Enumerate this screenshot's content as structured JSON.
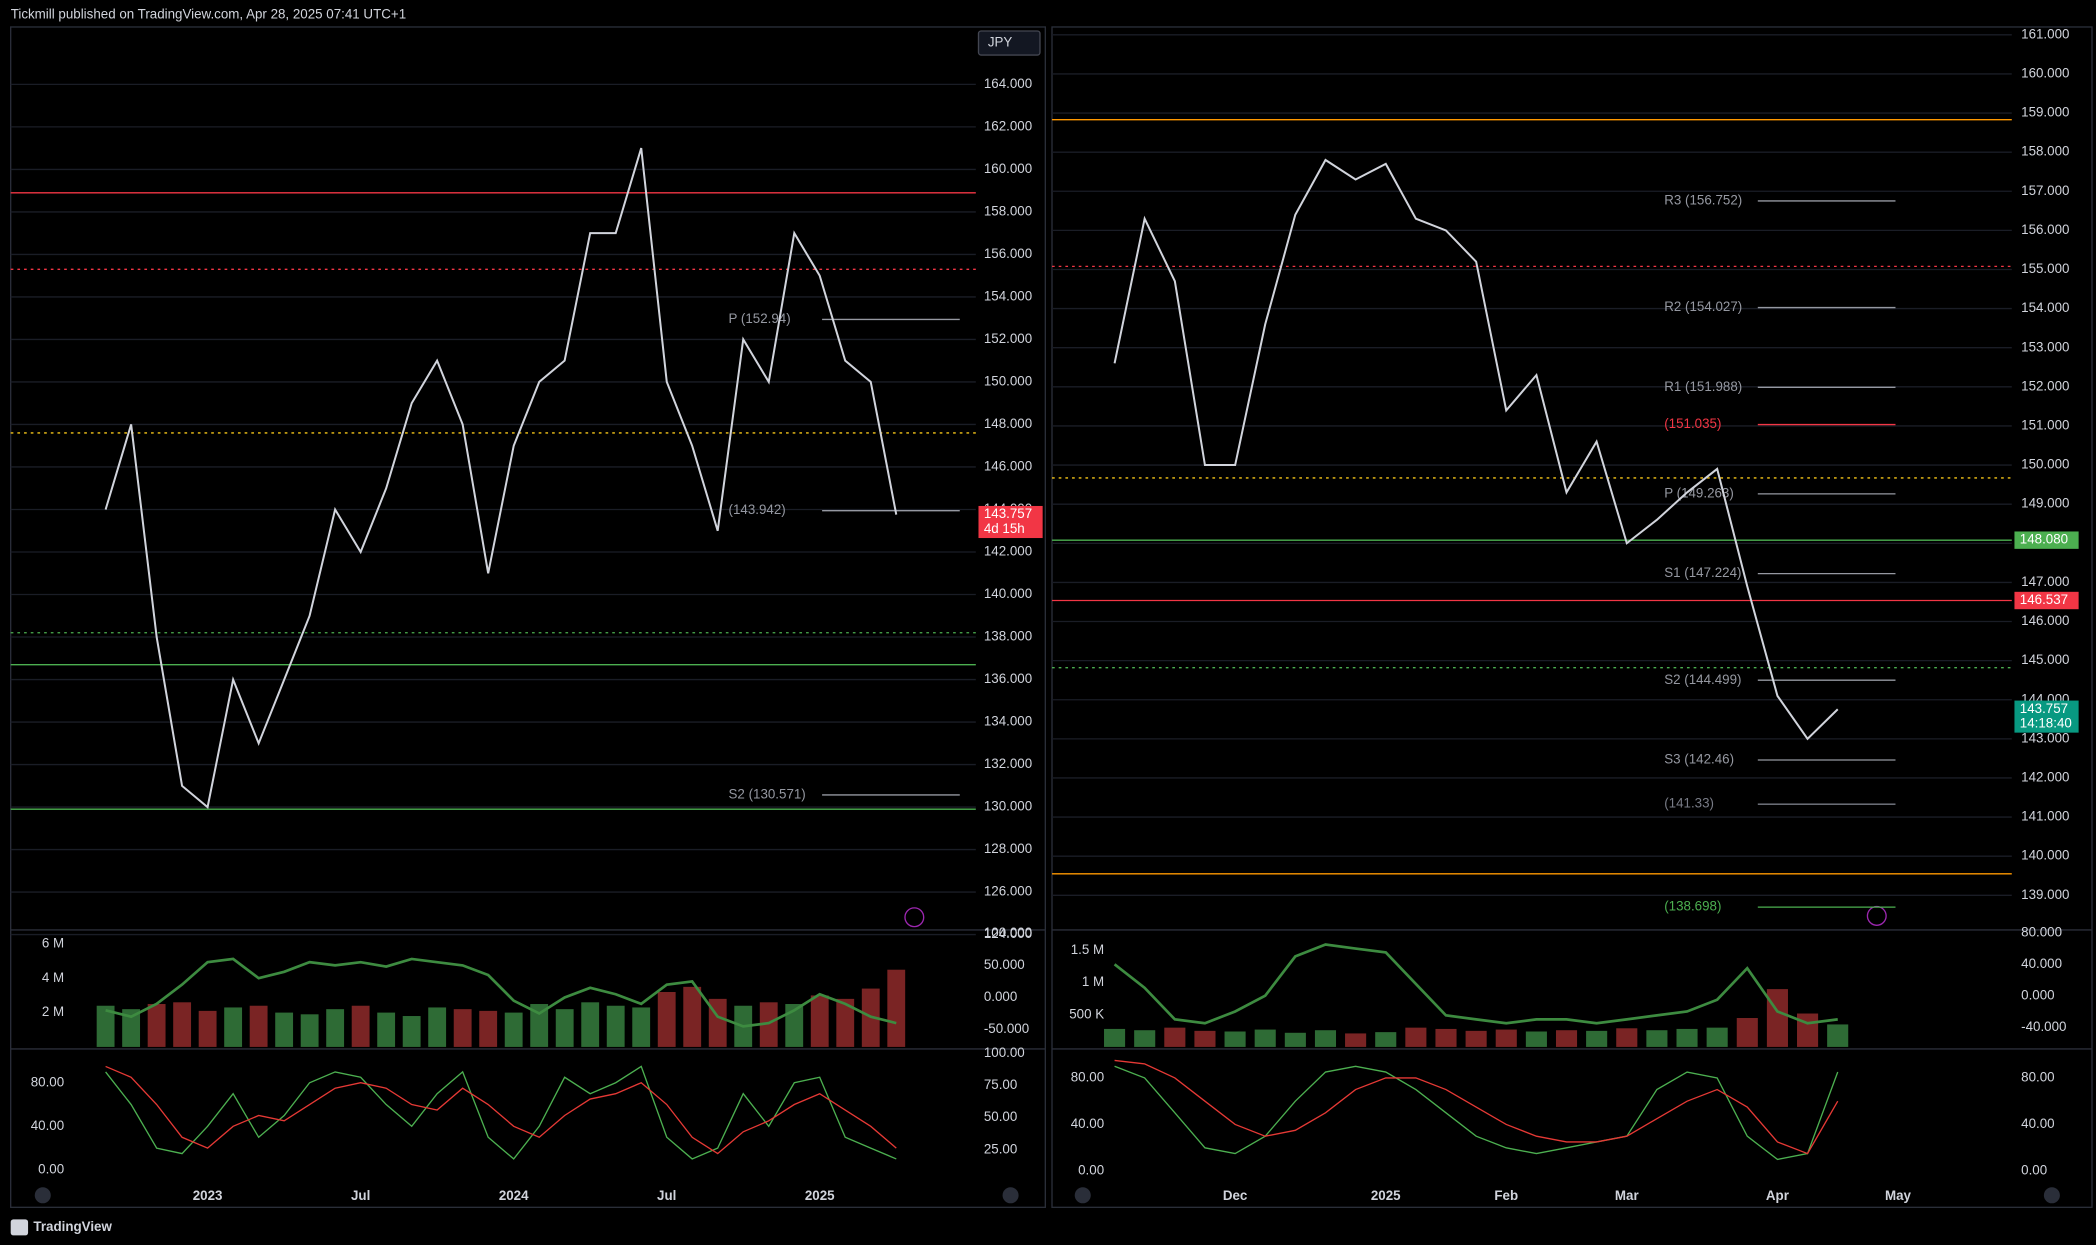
{
  "page": {
    "header": "Tickmill published on TradingView.com, Apr 28, 2025 07:41 UTC+1",
    "brand": "TradingView"
  },
  "chart_data": [
    {
      "type": "line",
      "currency": "JPY",
      "color": "#d1d4dc",
      "categories": [
        null,
        null,
        null,
        null,
        "2023",
        null,
        null,
        null,
        null,
        null,
        "Jul",
        null,
        null,
        null,
        null,
        null,
        "2024",
        null,
        null,
        null,
        null,
        null,
        "Jul",
        null,
        null,
        null,
        null,
        null,
        "2025",
        null,
        null,
        null
      ],
      "values": [
        144,
        148,
        138,
        131,
        130,
        136,
        133,
        136,
        139,
        144,
        142,
        145,
        149,
        151,
        148,
        141,
        147,
        150,
        151,
        157,
        157,
        161,
        150,
        147,
        143,
        152,
        150,
        157,
        155,
        151,
        150,
        143.757
      ],
      "ylim": [
        124.25,
        166.7
      ],
      "yticks": [
        {
          "value": 124,
          "label": "124.000"
        },
        {
          "value": 126,
          "label": "126.000"
        },
        {
          "value": 128,
          "label": "128.000"
        },
        {
          "value": 130,
          "label": "130.000"
        },
        {
          "value": 132,
          "label": "132.000"
        },
        {
          "value": 134,
          "label": "134.000"
        },
        {
          "value": 136,
          "label": "136.000"
        },
        {
          "value": 138,
          "label": "138.000"
        },
        {
          "value": 140,
          "label": "140.000"
        },
        {
          "value": 142,
          "label": "142.000"
        },
        {
          "value": 144,
          "label": "144.000"
        },
        {
          "value": 146,
          "label": "146.000"
        },
        {
          "value": 148,
          "label": "148.000"
        },
        {
          "value": 150,
          "label": "150.000"
        },
        {
          "value": 152,
          "label": "152.000"
        },
        {
          "value": 154,
          "label": "154.000"
        },
        {
          "value": 156,
          "label": "156.000"
        },
        {
          "value": 158,
          "label": "158.000"
        },
        {
          "value": 160,
          "label": "160.000"
        },
        {
          "value": 162,
          "label": "162.000"
        },
        {
          "value": 164,
          "label": "164.000"
        }
      ],
      "levels": [
        {
          "value": 158.9,
          "color": "#f23645"
        },
        {
          "value": 155.3,
          "color": "#f23645",
          "style": "dotted"
        },
        {
          "label": "P (152.94)",
          "value": 152.94,
          "color": "#9598a1"
        },
        {
          "value": 147.6,
          "color": "#f5c518",
          "style": "dotted"
        },
        {
          "label": "(143.942)",
          "value": 143.942,
          "color": "#9598a1"
        },
        {
          "value": 138.2,
          "color": "#4caf50",
          "style": "dotted"
        },
        {
          "value": 136.7,
          "color": "#4caf50"
        },
        {
          "label": "S2 (130.571)",
          "value": 130.571,
          "color": "#9598a1"
        },
        {
          "value": 129.9,
          "color": "#4caf50"
        }
      ],
      "tags": [
        {
          "value": 143.757,
          "label": "143.757",
          "note": "4d 15h",
          "color": "#f23645"
        }
      ],
      "volume": {
        "up_color": "#2e6b35",
        "down_color": "#7a2424",
        "values": [
          2400000,
          2200000,
          2500000,
          2600000,
          2100000,
          2300000,
          2400000,
          2000000,
          1900000,
          2200000,
          2400000,
          2000000,
          1800000,
          2300000,
          2200000,
          2100000,
          2000000,
          2500000,
          2200000,
          2600000,
          2400000,
          2300000,
          3200000,
          3500000,
          2800000,
          2400000,
          2600000,
          2500000,
          3000000,
          2800000,
          3400000,
          4500000
        ],
        "ylim": [
          0,
          6700000
        ],
        "yticks": [
          {
            "value": 2000000,
            "label": "2 M"
          },
          {
            "value": 4000000,
            "label": "4 M"
          },
          {
            "value": 6000000,
            "label": "6 M"
          }
        ]
      },
      "momentum": {
        "color": "#3d8b40",
        "values": [
          -20,
          -30,
          -10,
          20,
          55,
          60,
          30,
          40,
          55,
          50,
          55,
          48,
          60,
          55,
          50,
          35,
          -5,
          -25,
          0,
          15,
          5,
          -10,
          20,
          25,
          -30,
          -45,
          -40,
          -20,
          5,
          -10,
          -30,
          -40
        ],
        "ylim": [
          -77,
          102
        ],
        "yticks": [
          {
            "value": 100,
            "label": "100.000"
          },
          {
            "value": 50,
            "label": "50.000"
          },
          {
            "value": 0,
            "label": "0.000"
          },
          {
            "value": -50,
            "label": "-50.000"
          }
        ]
      },
      "oscillator": {
        "series": [
          {
            "color": "#4caf50",
            "values": [
              90,
              60,
              20,
              15,
              40,
              70,
              30,
              50,
              80,
              90,
              85,
              60,
              40,
              70,
              90,
              30,
              10,
              40,
              85,
              70,
              80,
              95,
              30,
              10,
              20,
              70,
              40,
              80,
              85,
              30,
              20,
              10
            ]
          },
          {
            "color": "#e53935",
            "values": [
              95,
              85,
              60,
              30,
              20,
              40,
              50,
              45,
              60,
              75,
              80,
              75,
              60,
              55,
              75,
              60,
              40,
              30,
              50,
              65,
              70,
              80,
              60,
              30,
              15,
              35,
              45,
              60,
              70,
              55,
              40,
              20
            ]
          }
        ],
        "ylim": [
          -8.6,
          108
        ],
        "yticks": [
          {
            "value": 80,
            "label": "80.00"
          },
          {
            "value": 40,
            "label": "40.00"
          },
          {
            "value": 0,
            "label": "0.00"
          }
        ],
        "y2lim": [
          2,
          101
        ],
        "y2ticks": [
          {
            "value": 100,
            "label": "100.00"
          },
          {
            "value": 75,
            "label": "75.00"
          },
          {
            "value": 50,
            "label": "50.00"
          },
          {
            "value": 25,
            "label": "25.00"
          }
        ]
      }
    },
    {
      "type": "line",
      "color": "#d1d4dc",
      "categories": [
        null,
        null,
        null,
        null,
        "Dec",
        null,
        null,
        null,
        null,
        "2025",
        null,
        null,
        null,
        "Feb",
        null,
        null,
        null,
        "Mar",
        null,
        null,
        null,
        null,
        "Apr",
        null,
        null,
        null,
        "May"
      ],
      "values": [
        152.6,
        156.3,
        154.7,
        150.0,
        150.0,
        153.6,
        156.4,
        157.8,
        157.3,
        157.7,
        156.3,
        156.0,
        155.2,
        151.4,
        152.3,
        149.3,
        150.6,
        148.0,
        148.6,
        149.3,
        149.9,
        146.9,
        144.1,
        143.0,
        143.757,
        null,
        null
      ],
      "ylim": [
        138.2,
        161.2
      ],
      "yticks": [
        {
          "value": 139,
          "label": "139.000"
        },
        {
          "value": 140,
          "label": "140.000"
        },
        {
          "value": 141,
          "label": "141.000"
        },
        {
          "value": 142,
          "label": "142.000"
        },
        {
          "value": 143,
          "label": "143.000"
        },
        {
          "value": 144,
          "label": "144.000"
        },
        {
          "value": 145,
          "label": "145.000"
        },
        {
          "value": 146,
          "label": "146.000"
        },
        {
          "value": 147,
          "label": "147.000"
        },
        {
          "value": 148,
          "label": "148.000"
        },
        {
          "value": 149,
          "label": "149.000"
        },
        {
          "value": 150,
          "label": "150.000"
        },
        {
          "value": 151,
          "label": "151.000"
        },
        {
          "value": 152,
          "label": "152.000"
        },
        {
          "value": 153,
          "label": "153.000"
        },
        {
          "value": 154,
          "label": "154.000"
        },
        {
          "value": 155,
          "label": "155.000"
        },
        {
          "value": 156,
          "label": "156.000"
        },
        {
          "value": 157,
          "label": "157.000"
        },
        {
          "value": 158,
          "label": "158.000"
        },
        {
          "value": 159,
          "label": "159.000"
        },
        {
          "value": 160,
          "label": "160.000"
        },
        {
          "value": 161,
          "label": "161.000"
        }
      ],
      "levels": [
        {
          "value": 158.83,
          "color": "#ff9800"
        },
        {
          "value": 155.08,
          "color": "#f23645",
          "style": "dotted"
        },
        {
          "label": "R3 (156.752)",
          "value": 156.752,
          "color": "#9598a1"
        },
        {
          "label": "R2 (154.027)",
          "value": 154.027,
          "color": "#9598a1"
        },
        {
          "label": "R1 (151.988)",
          "value": 151.988,
          "color": "#9598a1"
        },
        {
          "label": "(151.035)",
          "value": 151.035,
          "color": "#f23645"
        },
        {
          "value": 149.67,
          "color": "#f5c518",
          "style": "dotted"
        },
        {
          "label": "P (149.263)",
          "value": 149.263,
          "color": "#9598a1"
        },
        {
          "label": "S1 (147.224)",
          "value": 147.224,
          "color": "#9598a1"
        },
        {
          "value": 148.08,
          "color": "#4caf50"
        },
        {
          "value": 146.537,
          "color": "#f23645"
        },
        {
          "value": 144.82,
          "color": "#4caf50",
          "style": "dotted"
        },
        {
          "label": "S2 (144.499)",
          "value": 144.499,
          "color": "#9598a1"
        },
        {
          "label": "S3 (142.46)",
          "value": 142.46,
          "color": "#9598a1"
        },
        {
          "label": "(141.33)",
          "value": 141.33,
          "color": "#787b86"
        },
        {
          "label": "(138.698)",
          "value": 138.698,
          "color": "#4caf50"
        },
        {
          "value": 139.55,
          "color": "#ff9800"
        }
      ],
      "tags": [
        {
          "value": 148.08,
          "label": "148.080",
          "color": "#4caf50"
        },
        {
          "value": 146.537,
          "label": "146.537",
          "color": "#f23645"
        },
        {
          "value": 143.757,
          "label": "143.757",
          "note": "14:18:40",
          "color": "#089981"
        }
      ],
      "volume": {
        "up_color": "#2e6b35",
        "down_color": "#7a2424",
        "values": [
          280000,
          260000,
          300000,
          250000,
          240000,
          270000,
          220000,
          260000,
          210000,
          230000,
          300000,
          280000,
          250000,
          270000,
          240000,
          260000,
          250000,
          290000,
          260000,
          280000,
          300000,
          450000,
          900000,
          520000,
          350000,
          null,
          null
        ],
        "ylim": [
          0,
          1790000
        ],
        "yticks": [
          {
            "value": 500000,
            "label": "500 K"
          },
          {
            "value": 1000000,
            "label": "1 M"
          },
          {
            "value": 1500000,
            "label": "1.5 M"
          }
        ]
      },
      "momentum": {
        "color": "#3d8b40",
        "values": [
          40,
          10,
          -30,
          -35,
          -20,
          0,
          50,
          65,
          60,
          55,
          15,
          -25,
          -30,
          -35,
          -30,
          -30,
          -35,
          -30,
          -25,
          -20,
          -5,
          35,
          -20,
          -35,
          -30,
          null,
          null
        ],
        "ylim": [
          -65,
          81
        ],
        "yticks": [
          {
            "value": 80,
            "label": "80.000"
          },
          {
            "value": 40,
            "label": "40.000"
          },
          {
            "value": 0,
            "label": "0.000"
          },
          {
            "value": -40,
            "label": "-40.000"
          }
        ]
      },
      "oscillator": {
        "series": [
          {
            "color": "#4caf50",
            "values": [
              90,
              80,
              50,
              20,
              15,
              30,
              60,
              85,
              90,
              85,
              70,
              50,
              30,
              20,
              15,
              20,
              25,
              30,
              70,
              85,
              80,
              30,
              10,
              15,
              85,
              null,
              null
            ]
          },
          {
            "color": "#e53935",
            "values": [
              95,
              92,
              80,
              60,
              40,
              30,
              35,
              50,
              70,
              80,
              80,
              70,
              55,
              40,
              30,
              25,
              25,
              30,
              45,
              60,
              70,
              55,
              25,
              15,
              60,
              null,
              null
            ]
          }
        ],
        "ylim": [
          -7,
          102
        ],
        "yticks": [
          {
            "value": 80,
            "label": "80.00"
          },
          {
            "value": 40,
            "label": "40.00"
          },
          {
            "value": 0,
            "label": "0.00"
          }
        ],
        "y2lim": [
          -7,
          102
        ],
        "y2ticks": [
          {
            "value": 80,
            "label": "80.00"
          },
          {
            "value": 40,
            "label": "40.00"
          },
          {
            "value": 0,
            "label": "0.00"
          }
        ]
      }
    }
  ]
}
